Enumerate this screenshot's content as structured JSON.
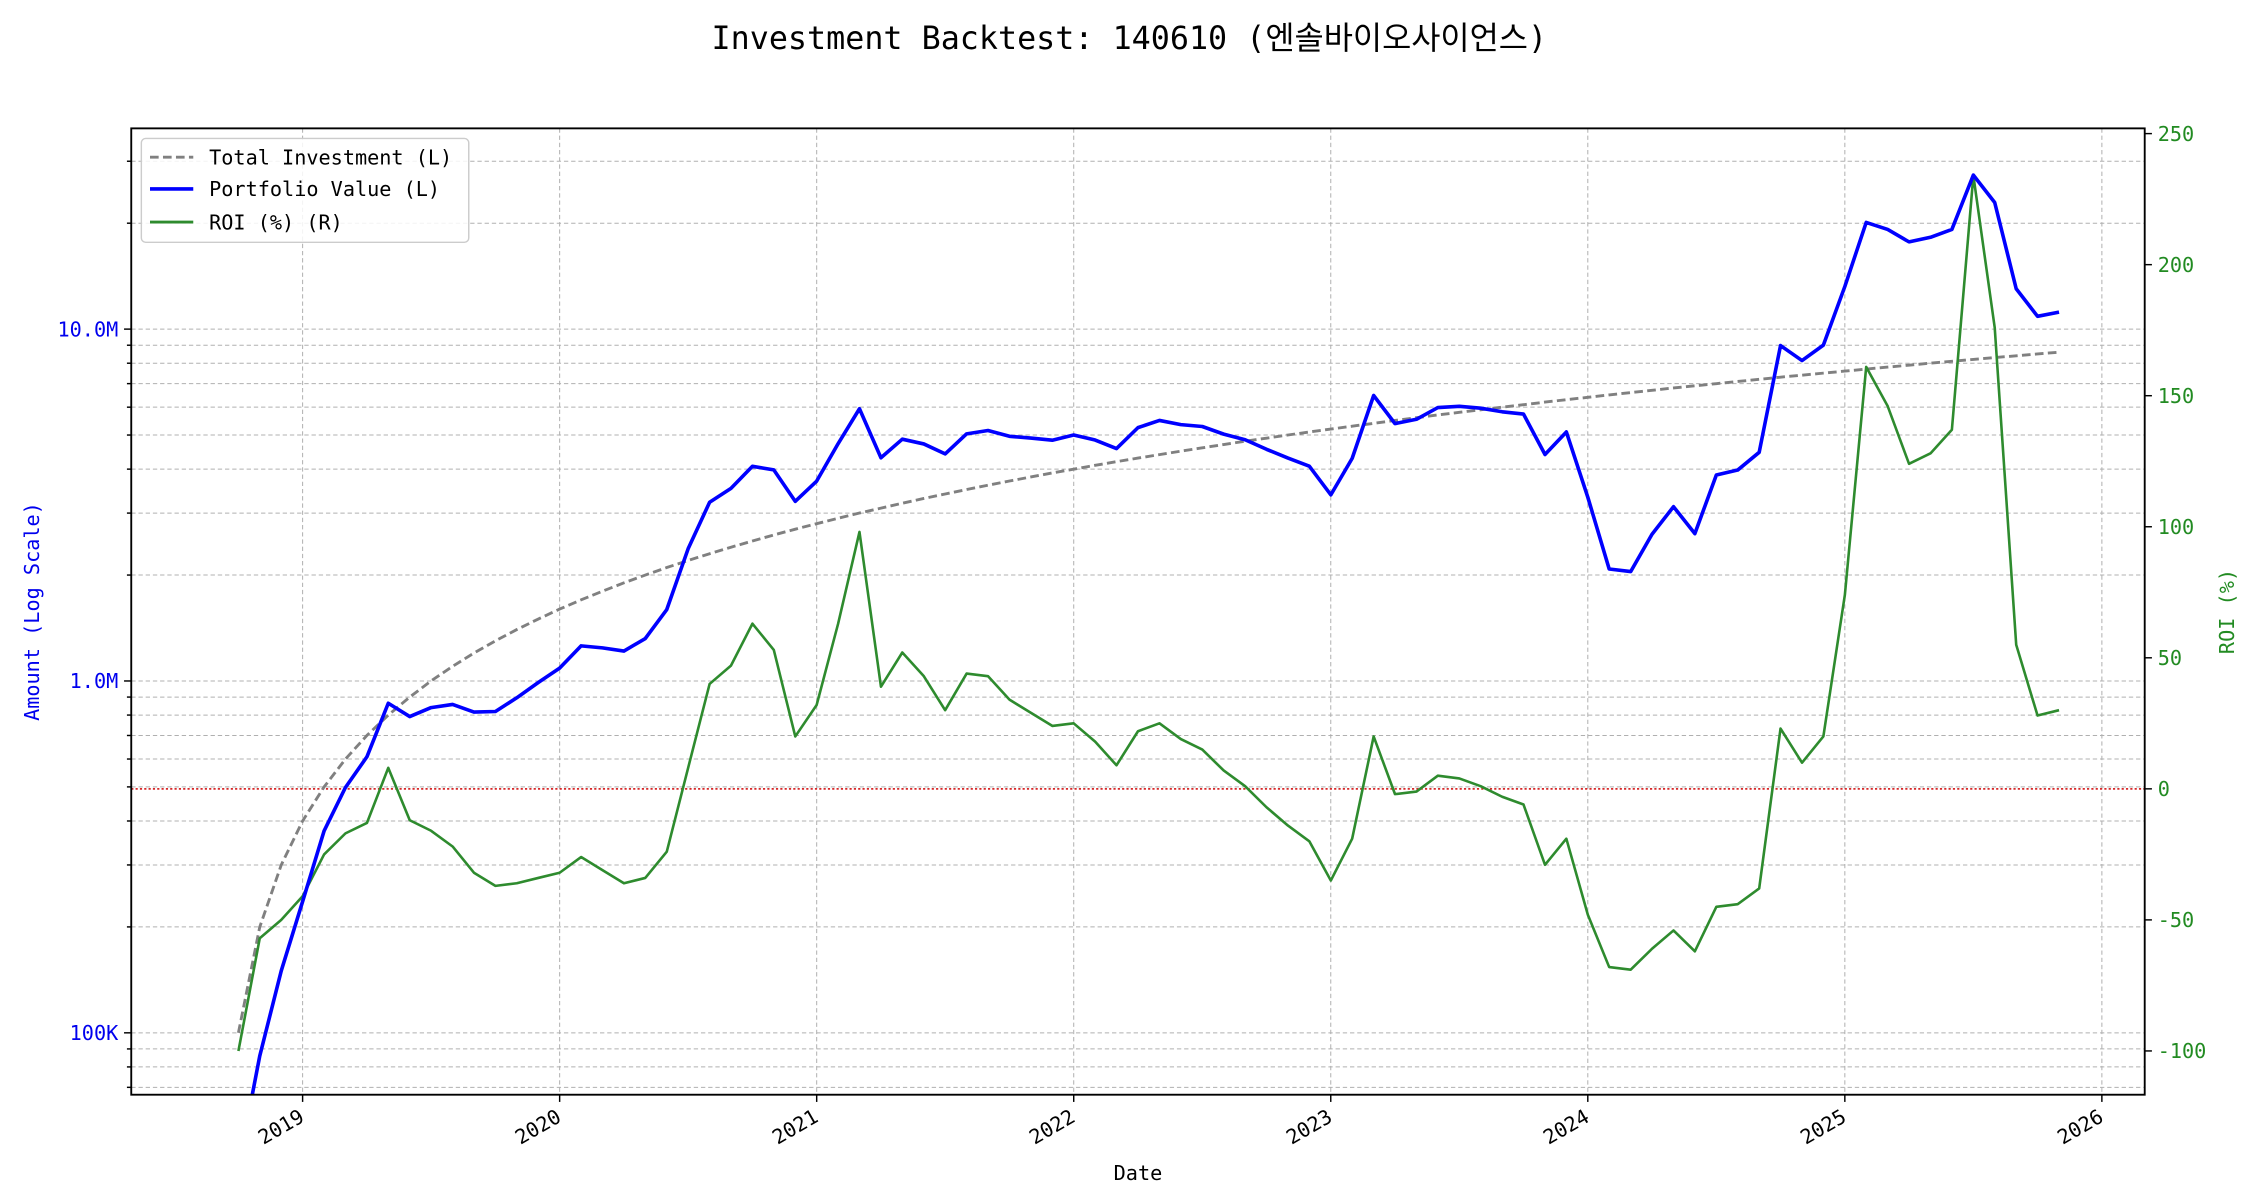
{
  "chart_data": {
    "type": "line",
    "title": "Investment Backtest: 140610 (엔솔바이오사이언스)",
    "xlabel": "Date",
    "ylabel_left": "Amount (Log Scale)",
    "ylabel_right": "ROI (%)",
    "yscale_left": "log",
    "ylim_left": [
      66700,
      37200000
    ],
    "ylim_right": [
      -116.7,
      252
    ],
    "xlim": [
      "2018-05",
      "2026-03"
    ],
    "grid": true,
    "legend_placement": "upper-left",
    "x_tick_labels": [
      "2019",
      "2020",
      "2021",
      "2022",
      "2023",
      "2024",
      "2025",
      "2026"
    ],
    "y_left_ticks": [
      {
        "value": 100000,
        "label": "100K"
      },
      {
        "value": 1000000,
        "label": "1.0M"
      },
      {
        "value": 10000000,
        "label": "10.0M"
      }
    ],
    "y_right_ticks": [
      -100,
      -50,
      0,
      50,
      100,
      150,
      200,
      250
    ],
    "reference_line": {
      "axis": "right",
      "value": 0,
      "color": "#d62728"
    },
    "colors": {
      "left_axis": "#0000ee",
      "right_axis": "#228b22",
      "total_investment": "#808080",
      "portfolio": "#0000ff",
      "roi": "#2e8b2e"
    },
    "dates": [
      "2018-10",
      "2018-11",
      "2018-12",
      "2019-01",
      "2019-02",
      "2019-03",
      "2019-04",
      "2019-05",
      "2019-06",
      "2019-07",
      "2019-08",
      "2019-09",
      "2019-10",
      "2019-11",
      "2019-12",
      "2020-01",
      "2020-02",
      "2020-03",
      "2020-04",
      "2020-05",
      "2020-06",
      "2020-07",
      "2020-08",
      "2020-09",
      "2020-10",
      "2020-11",
      "2020-12",
      "2021-01",
      "2021-02",
      "2021-03",
      "2021-04",
      "2021-05",
      "2021-06",
      "2021-07",
      "2021-08",
      "2021-09",
      "2021-10",
      "2021-11",
      "2021-12",
      "2022-01",
      "2022-02",
      "2022-03",
      "2022-04",
      "2022-05",
      "2022-06",
      "2022-07",
      "2022-08",
      "2022-09",
      "2022-10",
      "2022-11",
      "2022-12",
      "2023-01",
      "2023-02",
      "2023-03",
      "2023-04",
      "2023-05",
      "2023-06",
      "2023-07",
      "2023-08",
      "2023-09",
      "2023-10",
      "2023-11",
      "2023-12",
      "2024-01",
      "2024-02",
      "2024-03",
      "2024-04",
      "2024-05",
      "2024-06",
      "2024-07",
      "2024-08",
      "2024-09",
      "2024-10",
      "2024-11",
      "2024-12",
      "2025-01",
      "2025-02",
      "2025-03",
      "2025-04",
      "2025-05",
      "2025-06",
      "2025-07",
      "2025-08",
      "2025-09",
      "2025-10",
      "2025-11"
    ],
    "series": [
      {
        "name": "Total Investment (L)",
        "axis": "left",
        "style": "dashed",
        "values": [
          100000,
          200000,
          300000,
          400000,
          500000,
          600000,
          700000,
          800000,
          900000,
          1000000,
          1100000,
          1200000,
          1300000,
          1400000,
          1500000,
          1600000,
          1700000,
          1800000,
          1900000,
          2000000,
          2100000,
          2200000,
          2300000,
          2400000,
          2500000,
          2600000,
          2700000,
          2800000,
          2900000,
          3000000,
          3100000,
          3200000,
          3300000,
          3400000,
          3500000,
          3600000,
          3700000,
          3800000,
          3900000,
          4000000,
          4100000,
          4200000,
          4300000,
          4400000,
          4500000,
          4600000,
          4700000,
          4800000,
          4900000,
          5000000,
          5100000,
          5200000,
          5300000,
          5400000,
          5500000,
          5600000,
          5700000,
          5800000,
          5900000,
          6000000,
          6100000,
          6200000,
          6300000,
          6400000,
          6500000,
          6600000,
          6700000,
          6800000,
          6900000,
          7000000,
          7100000,
          7200000,
          7300000,
          7400000,
          7500000,
          7600000,
          7700000,
          7800000,
          7900000,
          8000000,
          8100000,
          8200000,
          8300000,
          8400000,
          8500000,
          8600000
        ]
      },
      {
        "name": "Portfolio Value (L)",
        "axis": "left",
        "style": "solid",
        "values": [
          0,
          86000,
          150000,
          236000,
          375000,
          498000,
          609000,
          864000,
          792000,
          840000,
          858000,
          816000,
          819000,
          896000,
          990000,
          1088000,
          1258000,
          1242000,
          1216000,
          1320000,
          1596000,
          2376000,
          3220000,
          3528000,
          4075000,
          3978000,
          3240000,
          3696000,
          4727000,
          5940000,
          4309000,
          4864000,
          4719000,
          4420000,
          5040000,
          5148000,
          4958000,
          4902000,
          4836000,
          5000000,
          4838000,
          4578000,
          5246000,
          5500000,
          5355000,
          5290000,
          5029000,
          4848000,
          4557000,
          4300000,
          4080000,
          3380000,
          4293000,
          6480000,
          5390000,
          5544000,
          5985000,
          6032000,
          5959000,
          5820000,
          5734000,
          4402000,
          5103000,
          3328000,
          2080000,
          2046000,
          2613000,
          3128000,
          2622000,
          3850000,
          3976000,
          4464000,
          8979000,
          8140000,
          9000000,
          13224000,
          20097000,
          19188000,
          17696000,
          18240000,
          19197000,
          27388000,
          22908000,
          13020000,
          10880000,
          11180000
        ]
      },
      {
        "name": "ROI (%) (R)",
        "axis": "right",
        "style": "solid",
        "values": [
          -100,
          -57,
          -50,
          -41,
          -25,
          -17,
          -13,
          8,
          -12,
          -16,
          -22,
          -32,
          -37,
          -36,
          -34,
          -32,
          -26,
          -31,
          -36,
          -34,
          -24,
          8,
          40,
          47,
          63,
          53,
          20,
          32,
          63,
          98,
          39,
          52,
          43,
          30,
          44,
          43,
          34,
          29,
          24,
          25,
          18,
          9,
          22,
          25,
          19,
          15,
          7,
          1,
          -7,
          -14,
          -20,
          -35,
          -19,
          20,
          -2,
          -1,
          5,
          4,
          1,
          -3,
          -6,
          -29,
          -19,
          -48,
          -68,
          -69,
          -61,
          -54,
          -62,
          -45,
          -44,
          -38,
          23,
          10,
          20,
          74,
          161,
          146,
          124,
          128,
          137,
          234,
          176,
          55,
          28,
          30
        ]
      }
    ]
  }
}
